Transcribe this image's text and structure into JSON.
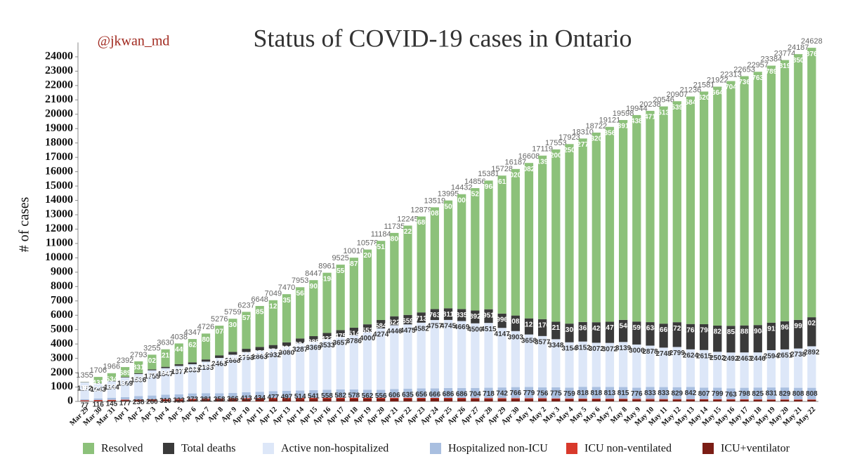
{
  "chart_data": {
    "type": "stacked_bar",
    "title": "Status of COVID-19 cases in Ontario",
    "author": "@jkwan_md",
    "ylabel": "# of cases",
    "categories": [
      "Mar 29",
      "Mar 30",
      "Mar 31",
      "Apr 1",
      "Apr 2",
      "Apr 3",
      "Apr 4",
      "Apr 5",
      "Apr 6",
      "Apr 7",
      "Apr 8",
      "Apr 9",
      "Apr 10",
      "Apr 11",
      "Apr 12",
      "Apr 13",
      "Apr 14",
      "Apr 15",
      "Apr 16",
      "Apr 17",
      "Apr 18",
      "Apr 19",
      "Apr 20",
      "Apr 21",
      "Apr 22",
      "Apr 23",
      "Apr 24",
      "Apr 25",
      "Apr 26",
      "Apr 27",
      "Apr 28",
      "Apr 29",
      "Apr 30",
      "May 1",
      "May 2",
      "May 3",
      "May 4",
      "May 5",
      "May 6",
      "May 7",
      "May 8",
      "May 9",
      "May 10",
      "May 11",
      "May 12",
      "May 13",
      "May 14",
      "May 15",
      "May 16",
      "May 17",
      "May 18",
      "May 19",
      "May 20",
      "May 21",
      "May 22"
    ],
    "series": [
      {
        "name": "Resolved",
        "color": "#8cc17a",
        "label_color": "#ffffff",
        "values": [
          8,
          431,
          534,
          689,
          831,
          1023,
          1219,
          1449,
          1624,
          1802,
          2074,
          2305,
          2574,
          2858,
          3121,
          3357,
          3568,
          3902,
          4194,
          4556,
          4875,
          5209,
          5515,
          5806,
          6221,
          6680,
          7087,
          7509,
          8000,
          8525,
          8964,
          9612,
          10205,
          10825,
          11390,
          12005,
          12505,
          12779,
          13208,
          13569,
          13919,
          14383,
          14718,
          15131,
          15391,
          15845,
          16204,
          16641,
          17047,
          17360,
          17638,
          17898,
          18190,
          18509,
          18767
        ]
      },
      {
        "name": "Total deaths",
        "color": "#3a3a3a",
        "label_color": "#ffffff",
        "values": [
          18,
          21,
          33,
          37,
          53,
          67,
          94,
          119,
          132,
          153,
          174,
          200,
          222,
          253,
          274,
          291,
          334,
          385,
          423,
          475,
          514,
          553,
          584,
          622,
          659,
          713,
          763,
          811,
          835,
          892,
          951,
          996,
          1082,
          1121,
          1176,
          1215,
          1300,
          1361,
          1429,
          1477,
          1540,
          1599,
          1634,
          1669,
          1725,
          1765,
          1798,
          1825,
          1858,
          1881,
          1904,
          1919,
          1962,
          1992,
          2021
        ]
      },
      {
        "name": "Active non-hospitalized",
        "color": "#dde7f8",
        "label_color": "#333333",
        "values": [
          1172,
          1043,
          1144,
          1369,
          1536,
          1755,
          1847,
          1977,
          2033,
          2195,
          2465,
          2668,
          2798,
          2863,
          2932,
          3080,
          3287,
          3369,
          3533,
          3657,
          3786,
          4000,
          4274,
          4446,
          4475,
          4582,
          4757,
          4745,
          4669,
          4500,
          4515,
          4147,
          3903,
          3658,
          3577,
          3348,
          3154,
          3152,
          3072,
          3072,
          3139,
          3006,
          2878,
          2748,
          2799,
          2624,
          2615,
          2502,
          2492,
          2463,
          2446,
          2594,
          2651,
          2738,
          2892
        ]
      },
      {
        "name": "Hospitalized non-ICU",
        "color": "#a9bfe0",
        "label_color": "#333333",
        "values": [
          77,
          116,
          145,
          177,
          238,
          260,
          310,
          323,
          373,
          381,
          358,
          366,
          413,
          434,
          477,
          497,
          514,
          541,
          558,
          582,
          578,
          562,
          556,
          606,
          635,
          656,
          666,
          686,
          686,
          704,
          718,
          742,
          766,
          779,
          756,
          775,
          759,
          818,
          818,
          813,
          815,
          776,
          833,
          833,
          829,
          842,
          807,
          799,
          763,
          798,
          825,
          831,
          829,
          808,
          808
        ]
      },
      {
        "name": "ICU non-ventilated",
        "color": "#d8392b",
        "values": [
          40,
          45,
          50,
          50,
          55,
          60,
          60,
          60,
          65,
          65,
          65,
          70,
          70,
          70,
          70,
          65,
          65,
          60,
          60,
          60,
          60,
          55,
          55,
          55,
          55,
          50,
          50,
          50,
          50,
          45,
          45,
          45,
          45,
          45,
          45,
          40,
          40,
          40,
          40,
          40,
          40,
          40,
          40,
          35,
          35,
          35,
          35,
          35,
          35,
          35,
          30,
          30,
          30,
          30,
          30
        ]
      },
      {
        "name": "ICU+ventilator",
        "color": "#7b1d15",
        "values": [
          40,
          50,
          60,
          70,
          80,
          90,
          100,
          110,
          120,
          130,
          140,
          150,
          160,
          170,
          175,
          180,
          185,
          190,
          193,
          195,
          197,
          199,
          200,
          200,
          200,
          198,
          196,
          194,
          192,
          190,
          188,
          186,
          186,
          180,
          175,
          170,
          165,
          160,
          155,
          150,
          145,
          140,
          135,
          130,
          128,
          125,
          122,
          120,
          118,
          116,
          114,
          112,
          112,
          110,
          110
        ]
      }
    ],
    "totals": [
      1355,
      1706,
      1966,
      2392,
      2793,
      3255,
      3630,
      4038,
      4347,
      4726,
      5276,
      5759,
      6237,
      6648,
      7049,
      7470,
      7953,
      8447,
      8961,
      9525,
      10010,
      10578,
      11184,
      11735,
      12245,
      12879,
      13519,
      13995,
      14432,
      14856,
      15381,
      15728,
      16187,
      16608,
      17119,
      17553,
      17923,
      18310,
      18722,
      19121,
      19598,
      19944,
      20238,
      20546,
      20907,
      21236,
      21581,
      21922,
      22313,
      22653,
      22957,
      23384,
      23774,
      24187,
      24628
    ],
    "ylim": [
      0,
      25000
    ],
    "yticks": [
      0,
      1000,
      2000,
      3000,
      4000,
      5000,
      6000,
      7000,
      8000,
      9000,
      10000,
      11000,
      12000,
      13000,
      14000,
      15000,
      16000,
      17000,
      18000,
      19000,
      20000,
      21000,
      22000,
      23000,
      24000
    ],
    "grid": false
  }
}
